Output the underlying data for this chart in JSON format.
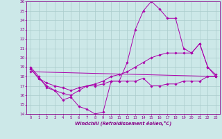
{
  "xlabel": "Windchill (Refroidissement éolien,°C)",
  "background_color": "#cce8e8",
  "line_color": "#aa00aa",
  "grid_color": "#aacccc",
  "xlim": [
    -0.5,
    23.5
  ],
  "ylim": [
    14,
    26
  ],
  "xticks": [
    0,
    1,
    2,
    3,
    4,
    5,
    6,
    7,
    8,
    9,
    10,
    11,
    12,
    13,
    14,
    15,
    16,
    17,
    18,
    19,
    20,
    21,
    22,
    23
  ],
  "yticks": [
    14,
    15,
    16,
    17,
    18,
    19,
    20,
    21,
    22,
    23,
    24,
    25,
    26
  ],
  "series": [
    {
      "x": [
        0,
        1,
        2,
        3,
        4,
        5,
        6,
        7,
        8,
        9,
        10,
        11,
        12,
        13,
        14,
        15,
        16,
        17,
        18,
        19,
        20,
        21,
        22,
        23
      ],
      "y": [
        19,
        18,
        16.8,
        16.5,
        15.5,
        15.8,
        14.8,
        14.5,
        14,
        14.2,
        17.5,
        17.5,
        19.5,
        23,
        25,
        26,
        25.2,
        24.2,
        24.2,
        21,
        20.5,
        21.5,
        19,
        18
      ]
    },
    {
      "x": [
        0,
        1,
        2,
        3,
        4,
        5,
        6,
        7,
        8,
        9,
        10,
        11,
        12,
        13,
        14,
        15,
        16,
        17,
        18,
        19,
        20,
        21,
        22,
        23
      ],
      "y": [
        18.8,
        17.8,
        17.3,
        17.0,
        16.8,
        16.5,
        16.8,
        17.0,
        17.2,
        17.5,
        18.0,
        18.2,
        18.5,
        19.0,
        19.5,
        20.0,
        20.3,
        20.5,
        20.5,
        20.5,
        20.5,
        21.5,
        19.0,
        18.2
      ]
    },
    {
      "x": [
        0,
        23
      ],
      "y": [
        18.5,
        18.0
      ]
    },
    {
      "x": [
        0,
        1,
        2,
        3,
        4,
        5,
        6,
        7,
        8,
        9,
        10,
        11,
        12,
        13,
        14,
        15,
        16,
        17,
        18,
        19,
        20,
        21,
        22,
        23
      ],
      "y": [
        18.8,
        17.8,
        17.0,
        16.5,
        16.2,
        16.0,
        16.5,
        17.0,
        17.0,
        17.2,
        17.5,
        17.5,
        17.5,
        17.5,
        17.8,
        17.0,
        17.0,
        17.2,
        17.2,
        17.5,
        17.5,
        17.5,
        18.0,
        18.0
      ]
    }
  ]
}
